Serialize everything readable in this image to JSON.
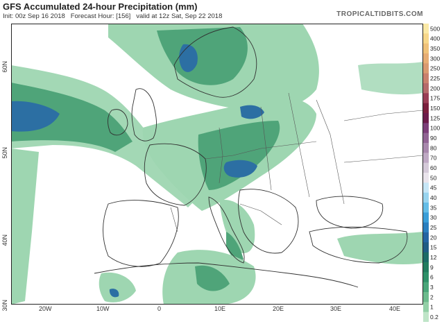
{
  "header": {
    "title": "GFS Accumulated 24-hour Precipitation (mm)",
    "init": "Init: 00z Sep 16 2018",
    "forecast_hour": "Forecast Hour: [156]",
    "valid": "valid at 12z Sat, Sep 22 2018",
    "brand": "TROPICALTIDBITS.COM"
  },
  "axes": {
    "lat_labels": [
      "60N",
      "50N",
      "40N",
      "30N"
    ],
    "lon_labels": [
      "20W",
      "10W",
      "0",
      "10E",
      "20E",
      "30E",
      "40E"
    ]
  },
  "colorbar": {
    "levels": [
      "500",
      "400",
      "350",
      "300",
      "250",
      "225",
      "200",
      "175",
      "150",
      "125",
      "100",
      "90",
      "80",
      "70",
      "60",
      "50",
      "45",
      "40",
      "35",
      "30",
      "25",
      "20",
      "15",
      "12",
      "9",
      "6",
      "3",
      "2",
      "1",
      "0.2"
    ],
    "colors": [
      "#fbe9a6",
      "#f7d78a",
      "#f0c27a",
      "#e7ad74",
      "#d99a70",
      "#c9806d",
      "#b56a6a",
      "#9a3e55",
      "#7b1f3d",
      "#6b1c4a",
      "#7c3f79",
      "#916494",
      "#a888ad",
      "#bfa9c4",
      "#d5cad9",
      "#eae4ec",
      "#c6e6f6",
      "#98d4ef",
      "#64bde7",
      "#3a9ed8",
      "#2a7fbf",
      "#2364a2",
      "#1f5c84",
      "#1c6b66",
      "#227d5f",
      "#2f9169",
      "#4aa67a",
      "#6cbb8d",
      "#93d0a7",
      "#bfe5c8"
    ]
  },
  "colors": {
    "land": "#ffffff",
    "light_green": "#9ed6b1",
    "mid_green": "#4fa479",
    "dark_green": "#246d54",
    "blue": "#2c6fa3",
    "border": "#303030"
  }
}
